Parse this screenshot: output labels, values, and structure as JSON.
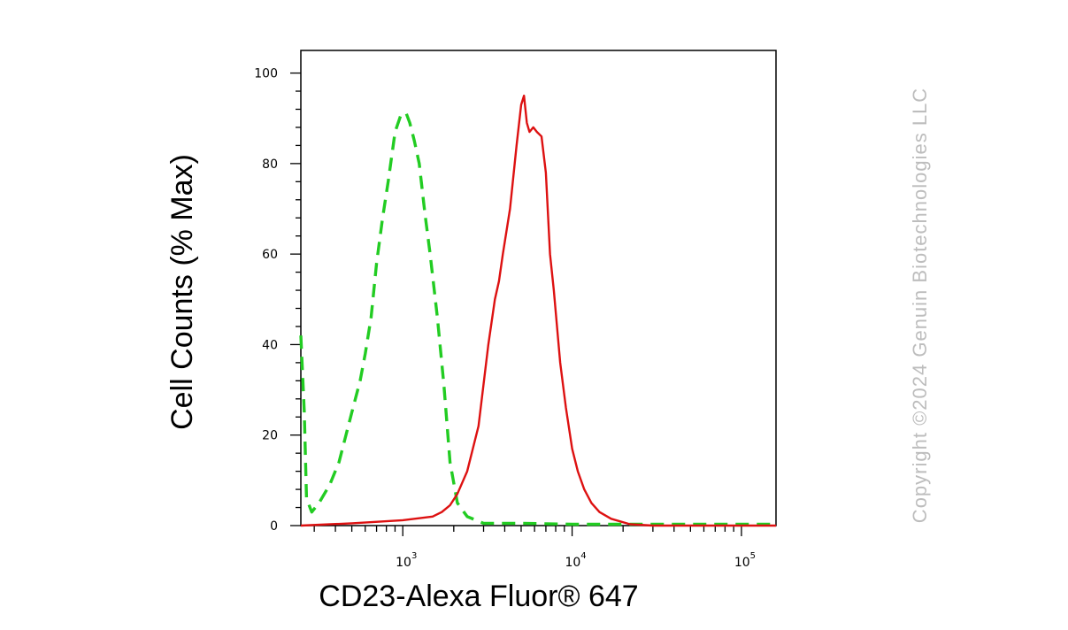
{
  "chart_data": {
    "type": "line",
    "xlabel": "CD23-Alexa Fluor® 647",
    "ylabel": "Cell Counts (% Max)",
    "x_scale": "log",
    "xlim": [
      250,
      160000
    ],
    "ylim": [
      0,
      105
    ],
    "y_ticks": [
      0,
      20,
      40,
      60,
      80,
      100
    ],
    "y_tick_labels": [
      "0",
      "20",
      "40",
      "60",
      "80",
      "100"
    ],
    "x_ticks": [
      {
        "value": 1000,
        "base": "10",
        "exp": "3"
      },
      {
        "value": 10000,
        "base": "10",
        "exp": "4"
      },
      {
        "value": 100000,
        "base": "10",
        "exp": "5"
      }
    ],
    "series": [
      {
        "color": "#22cc22",
        "style": "dashed",
        "x": [
          250,
          262,
          270,
          290,
          320,
          370,
          420,
          500,
          560,
          600,
          650,
          700,
          760,
          820,
          900,
          980,
          1050,
          1100,
          1170,
          1250,
          1350,
          1450,
          1600,
          1750,
          1900,
          2100,
          2400,
          3000,
          5000,
          10000,
          30000,
          160000
        ],
        "y": [
          42,
          25,
          6,
          3,
          5,
          9,
          14,
          25,
          32,
          38,
          46,
          58,
          68,
          76,
          87,
          91,
          91,
          89,
          85,
          80,
          69,
          60,
          46,
          31,
          14,
          5,
          2,
          0.5,
          0.5,
          0.3,
          0.3,
          0.3
        ]
      },
      {
        "color": "#dd1111",
        "style": "solid",
        "x": [
          250,
          500,
          1000,
          1500,
          1700,
          1900,
          2100,
          2400,
          2800,
          3200,
          3500,
          3700,
          3900,
          4300,
          4700,
          5000,
          5200,
          5400,
          5600,
          5900,
          6200,
          6600,
          7000,
          7400,
          7800,
          8500,
          9200,
          10000,
          10800,
          11800,
          13000,
          14500,
          17000,
          22000,
          30000,
          50000,
          160000
        ],
        "y": [
          0,
          0.5,
          1.2,
          2,
          3,
          4.5,
          7,
          12,
          22,
          40,
          50,
          54,
          60,
          70,
          84,
          93,
          95,
          89,
          87,
          88,
          87,
          86,
          78,
          60,
          52,
          36,
          26,
          17,
          12,
          8,
          5,
          3,
          1.5,
          0.3,
          0,
          0,
          0
        ]
      }
    ]
  },
  "watermark": "Copyright ©2024 Genuin Biotechnologies LLC"
}
